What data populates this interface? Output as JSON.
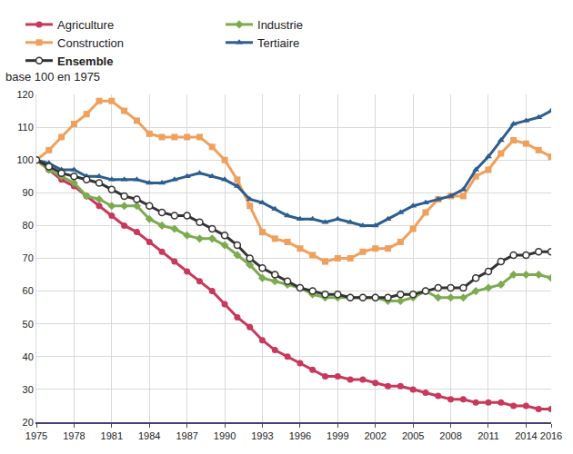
{
  "chart_data": {
    "type": "line",
    "y_label": "base 100 en 1975",
    "x": [
      1975,
      1976,
      1977,
      1978,
      1979,
      1980,
      1981,
      1982,
      1983,
      1984,
      1985,
      1986,
      1987,
      1988,
      1989,
      1990,
      1991,
      1992,
      1993,
      1994,
      1995,
      1996,
      1997,
      1998,
      1999,
      2000,
      2001,
      2002,
      2003,
      2004,
      2005,
      2006,
      2007,
      2008,
      2009,
      2010,
      2011,
      2012,
      2013,
      2014,
      2015,
      2016
    ],
    "xlim": [
      1975,
      2016
    ],
    "xticks": [
      1975,
      1978,
      1981,
      1984,
      1987,
      1990,
      1993,
      1996,
      1999,
      2002,
      2005,
      2008,
      2011,
      2014,
      2016
    ],
    "ylim": [
      20,
      120
    ],
    "yticks": [
      20,
      30,
      40,
      50,
      60,
      70,
      80,
      90,
      100,
      110,
      120
    ],
    "grid": true,
    "legend": "top",
    "series": [
      {
        "name": "Agriculture",
        "color": "#c9385b",
        "marker": "circle",
        "values": [
          100,
          97,
          94,
          92,
          89,
          86,
          83,
          80,
          78,
          75,
          72,
          69,
          66,
          63,
          60,
          56,
          52,
          49,
          45,
          42,
          40,
          38,
          36,
          34,
          34,
          33,
          33,
          32,
          31,
          31,
          30,
          29,
          28,
          27,
          27,
          26,
          26,
          26,
          25,
          25,
          24,
          24
        ]
      },
      {
        "name": "Industrie",
        "color": "#7dab50",
        "marker": "diamond",
        "values": [
          100,
          97,
          95,
          93,
          89,
          88,
          86,
          86,
          86,
          82,
          80,
          79,
          77,
          76,
          76,
          74,
          71,
          68,
          64,
          63,
          62,
          61,
          59,
          58,
          58,
          58,
          58,
          58,
          57,
          57,
          58,
          60,
          58,
          58,
          58,
          60,
          61,
          62,
          65,
          65,
          65,
          64
        ]
      },
      {
        "name": "Construction",
        "color": "#f0a05c",
        "marker": "square",
        "values": [
          100,
          103,
          107,
          111,
          114,
          118,
          118,
          115,
          112,
          108,
          107,
          107,
          107,
          107,
          104,
          100,
          94,
          86,
          78,
          76,
          75,
          73,
          71,
          69,
          70,
          70,
          72,
          73,
          73,
          75,
          79,
          84,
          88,
          89,
          89,
          95,
          97,
          102,
          106,
          105,
          103,
          101
        ]
      },
      {
        "name": "Tertiaire",
        "color": "#2c5e8f",
        "marker": "triangle-up",
        "values": [
          100,
          99,
          97,
          97,
          95,
          95,
          94,
          94,
          94,
          93,
          93,
          94,
          95,
          96,
          95,
          94,
          92,
          88,
          87,
          85,
          83,
          82,
          82,
          81,
          82,
          81,
          80,
          80,
          82,
          84,
          86,
          87,
          88,
          89,
          91,
          97,
          101,
          106,
          111,
          112,
          113,
          115
        ]
      },
      {
        "name": "Ensemble",
        "color": "#333333",
        "marker": "circle-open",
        "values": [
          100,
          98,
          96,
          95,
          94,
          93,
          91,
          89,
          88,
          86,
          84,
          83,
          83,
          81,
          79,
          77,
          74,
          70,
          67,
          65,
          63,
          61,
          60,
          59,
          59,
          58,
          58,
          58,
          58,
          59,
          59,
          60,
          61,
          61,
          61,
          64,
          66,
          69,
          71,
          71,
          72,
          72
        ]
      }
    ]
  }
}
